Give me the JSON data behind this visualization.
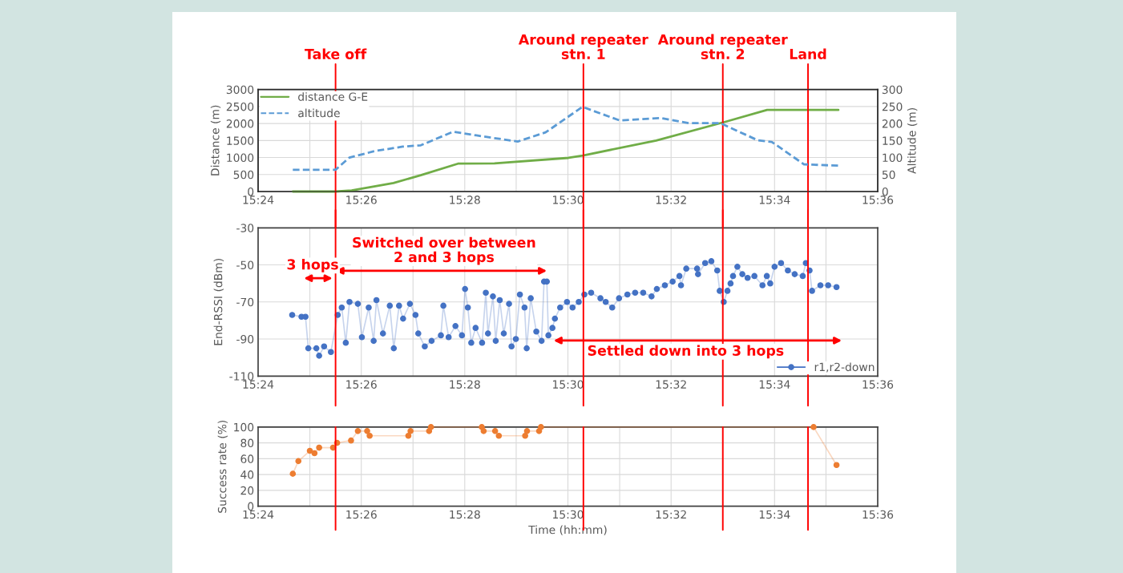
{
  "chart_data": [
    {
      "type": "line",
      "ylabel": "Distance (m)",
      "y2label": "Altitude (m)",
      "series": [
        {
          "name": "distance G-E",
          "color": "#70ad47",
          "line_style": "solid",
          "x": [
            15.4112,
            15.425,
            15.4302,
            15.4437,
            15.4525,
            15.4645,
            15.4763,
            15.5002,
            15.5048,
            15.5285,
            15.5508,
            15.5643,
            15.5873
          ],
          "values": [
            0,
            0,
            30,
            250,
            480,
            820,
            830,
            990,
            1060,
            1500,
            2050,
            2400,
            2400
          ]
        },
        {
          "name": "altitude",
          "color": "#5b9bd5",
          "line_style": "dashed",
          "axis": "y2",
          "x": [
            15.4112,
            15.425,
            15.4295,
            15.4377,
            15.4467,
            15.4525,
            15.463,
            15.4705,
            15.4838,
            15.4928,
            15.5047,
            15.5167,
            15.53,
            15.539,
            15.5493,
            15.5612,
            15.5658,
            15.5762,
            15.5873
          ],
          "values": [
            64,
            64,
            100,
            119,
            132,
            136,
            176,
            165,
            147,
            174,
            249,
            209,
            216,
            201,
            201,
            151,
            146,
            80,
            76
          ]
        }
      ],
      "xlim": [
        15.4,
        15.6
      ],
      "xticks": [
        {
          "value": 15.4,
          "label": "15:24"
        },
        {
          "value": 15.4167,
          "label": null
        },
        {
          "value": 15.4333,
          "label": "15:26"
        },
        {
          "value": 15.45,
          "label": null
        },
        {
          "value": 15.4667,
          "label": "15:28"
        },
        {
          "value": 15.4833,
          "label": null
        },
        {
          "value": 15.5,
          "label": "15:30"
        },
        {
          "value": 15.5167,
          "label": null
        },
        {
          "value": 15.5333,
          "label": "15:32"
        },
        {
          "value": 15.55,
          "label": null
        },
        {
          "value": 15.5667,
          "label": "15:34"
        },
        {
          "value": 15.5833,
          "label": null
        },
        {
          "value": 15.6,
          "label": "15:36"
        }
      ],
      "ylim": [
        0,
        3000
      ],
      "yticks": [
        0,
        500,
        1000,
        1500,
        2000,
        2500,
        3000
      ],
      "y2lim": [
        0,
        300
      ],
      "y2ticks": [
        0,
        50,
        100,
        150,
        200,
        250,
        300
      ],
      "grid": true,
      "legend": "top left",
      "ref_lines": [
        {
          "axis": "x",
          "value": 15.425,
          "label": "Take off",
          "color": "#ff0000"
        },
        {
          "axis": "x",
          "value": 15.505,
          "label": "Around repeater\nstn. 1",
          "color": "#ff0000"
        },
        {
          "axis": "x",
          "value": 15.55,
          "label": "Around repeater\nstn. 2",
          "color": "#ff0000"
        },
        {
          "axis": "x",
          "value": 15.5775,
          "label": "Land",
          "color": "#ff0000"
        }
      ]
    },
    {
      "type": "line",
      "ylabel": "End-RSSI (dBm)",
      "marker": "circle",
      "series": [
        {
          "name": "r1,r2-down",
          "color": "#4472c4",
          "x": [
            15.411,
            15.414,
            15.4153,
            15.4162,
            15.4188,
            15.4197,
            15.4213,
            15.4235,
            15.4257,
            15.427,
            15.4283,
            15.4295,
            15.4322,
            15.4335,
            15.4357,
            15.4373,
            15.4382,
            15.4403,
            15.4425,
            15.4438,
            15.4455,
            15.4468,
            15.449,
            15.4508,
            15.4517,
            15.4538,
            15.456,
            15.459,
            15.4598,
            15.4615,
            15.4637,
            15.4658,
            15.4668,
            15.4677,
            15.4688,
            15.4702,
            15.4723,
            15.4735,
            15.4742,
            15.4758,
            15.4767,
            15.478,
            15.4793,
            15.481,
            15.4818,
            15.4832,
            15.4845,
            15.486,
            15.4867,
            15.488,
            15.4898,
            15.4915,
            15.4923,
            15.4932,
            15.4937,
            15.495,
            15.4958,
            15.4975,
            15.4997,
            15.5015,
            15.5035,
            15.5053,
            15.5075,
            15.5105,
            15.5122,
            15.5143,
            15.5165,
            15.5192,
            15.5217,
            15.5243,
            15.527,
            15.5287,
            15.5313,
            15.5338,
            15.536,
            15.5365,
            15.5382,
            15.5417,
            15.542,
            15.5443,
            15.5463,
            15.5482,
            15.549,
            15.5503,
            15.5515,
            15.5525,
            15.5533,
            15.5547,
            15.5563,
            15.558,
            15.5602,
            15.5628,
            15.5642,
            15.5653,
            15.5667,
            15.5688,
            15.571,
            15.5732,
            15.5758,
            15.5768,
            15.578,
            15.5788,
            15.5815,
            15.584,
            15.5867
          ],
          "values": [
            -77,
            -78,
            -78,
            -95,
            -95,
            -99,
            -94,
            -97,
            -77,
            -73,
            -92,
            -70,
            -71,
            -89,
            -73,
            -91,
            -69,
            -87,
            -72,
            -95,
            -72,
            -79,
            -71,
            -77,
            -87,
            -94,
            -91,
            -88,
            -72,
            -89,
            -83,
            -88,
            -63,
            -73,
            -92,
            -84,
            -92,
            -65,
            -87,
            -67,
            -91,
            -69,
            -87,
            -71,
            -94,
            -90,
            -66,
            -73,
            -95,
            -68,
            -86,
            -91,
            -59,
            -59,
            -88,
            -84,
            -79,
            -73,
            -70,
            -73,
            -70,
            -66,
            -65,
            -68,
            -70,
            -73,
            -68,
            -66,
            -65,
            -65,
            -67,
            -63,
            -61,
            -59,
            -56,
            -61,
            -52,
            -52,
            -55,
            -49,
            -48,
            -53,
            -64,
            -70,
            -64,
            -60,
            -56,
            -51,
            -55,
            -57,
            -56,
            -61,
            -56,
            -60,
            -51,
            -49,
            -53,
            -55,
            -56,
            -49,
            -53,
            -64,
            -61,
            -61,
            -62
          ]
        }
      ],
      "xlim": [
        15.4,
        15.6
      ],
      "xticks": [
        {
          "value": 15.4,
          "label": "15:24"
        },
        {
          "value": 15.4167,
          "label": null
        },
        {
          "value": 15.4333,
          "label": "15:26"
        },
        {
          "value": 15.45,
          "label": null
        },
        {
          "value": 15.4667,
          "label": "15:28"
        },
        {
          "value": 15.4833,
          "label": null
        },
        {
          "value": 15.5,
          "label": "15:30"
        },
        {
          "value": 15.5167,
          "label": null
        },
        {
          "value": 15.5333,
          "label": "15:32"
        },
        {
          "value": 15.55,
          "label": null
        },
        {
          "value": 15.5667,
          "label": "15:34"
        },
        {
          "value": 15.5833,
          "label": null
        },
        {
          "value": 15.6,
          "label": "15:36"
        }
      ],
      "ylim": [
        -110,
        -30
      ],
      "yticks": [
        -110,
        -90,
        -70,
        -50,
        -30
      ],
      "grid": true,
      "legend": "bottom right",
      "ref_lines": [
        {
          "axis": "x",
          "value": 15.425,
          "color": "#ff0000"
        },
        {
          "axis": "x",
          "value": 15.505,
          "color": "#ff0000"
        },
        {
          "axis": "x",
          "value": 15.55,
          "color": "#ff0000"
        },
        {
          "axis": "x",
          "value": 15.5775,
          "color": "#ff0000"
        }
      ],
      "annotations": [
        "3 hops",
        "Switched over between\n2 and 3 hops",
        "Settled down into 3 hops"
      ]
    },
    {
      "type": "line",
      "ylabel": "Success rate (%)",
      "xlabel": "Time (hh:mm)",
      "marker": "circle",
      "series": [
        {
          "color": "#ed7d31",
          "x": [
            15.4112,
            15.413,
            15.4167,
            15.4182,
            15.4197,
            15.4242,
            15.4255,
            15.43,
            15.4322,
            15.4352,
            15.436,
            15.4485,
            15.4492,
            15.4552,
            15.4558,
            15.4722,
            15.4728,
            15.4765,
            15.4777,
            15.4862,
            15.4868,
            15.4907,
            15.4913,
            15.5793,
            15.5867
          ],
          "values": [
            41,
            57,
            70,
            67,
            74,
            74,
            80,
            83,
            95,
            95,
            89,
            89,
            95,
            95,
            100,
            100,
            95,
            95,
            89,
            89,
            95,
            95,
            100,
            100,
            52
          ]
        }
      ],
      "xlim": [
        15.4,
        15.6
      ],
      "xticks": [
        {
          "value": 15.4,
          "label": "15:24"
        },
        {
          "value": 15.4167,
          "label": null
        },
        {
          "value": 15.4333,
          "label": "15:26"
        },
        {
          "value": 15.45,
          "label": null
        },
        {
          "value": 15.4667,
          "label": "15:28"
        },
        {
          "value": 15.4833,
          "label": null
        },
        {
          "value": 15.5,
          "label": "15:30"
        },
        {
          "value": 15.5167,
          "label": null
        },
        {
          "value": 15.5333,
          "label": "15:32"
        },
        {
          "value": 15.55,
          "label": null
        },
        {
          "value": 15.5667,
          "label": "15:34"
        },
        {
          "value": 15.5833,
          "label": null
        },
        {
          "value": 15.6,
          "label": "15:36"
        }
      ],
      "ylim": [
        0,
        100
      ],
      "yticks": [
        0,
        20,
        40,
        60,
        80,
        100
      ],
      "grid": true,
      "ref_lines": [
        {
          "axis": "x",
          "value": 15.425,
          "color": "#ff0000"
        },
        {
          "axis": "x",
          "value": 15.505,
          "color": "#ff0000"
        },
        {
          "axis": "x",
          "value": 15.55,
          "color": "#ff0000"
        },
        {
          "axis": "x",
          "value": 15.5775,
          "color": "#ff0000"
        }
      ]
    }
  ]
}
